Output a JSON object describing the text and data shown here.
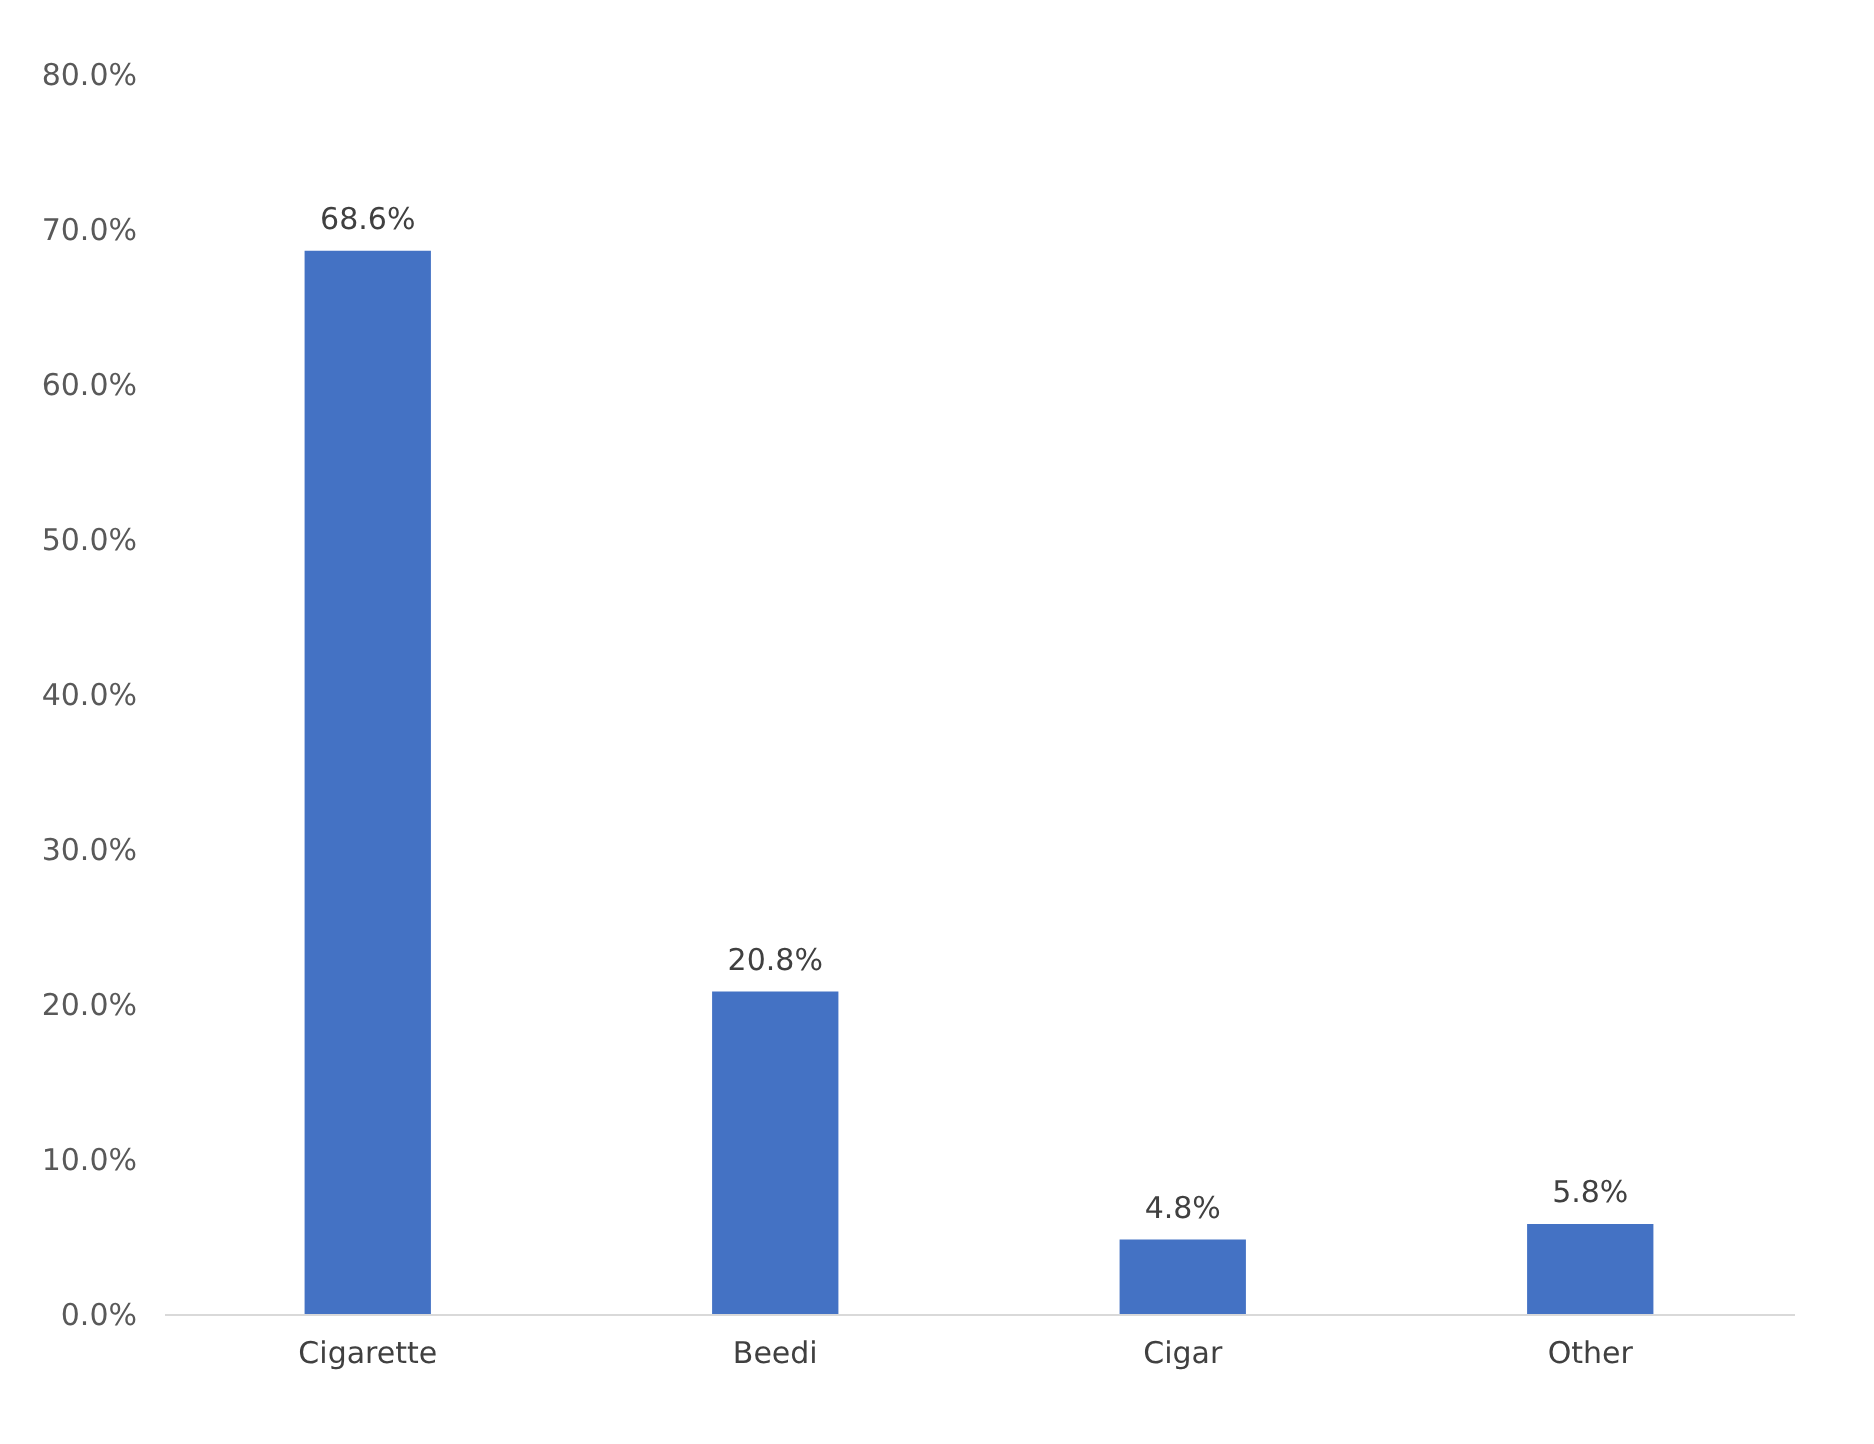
{
  "chart_data": {
    "type": "bar",
    "categories": [
      "Cigarette",
      "Beedi",
      "Cigar",
      "Other"
    ],
    "values": [
      68.6,
      20.8,
      4.8,
      5.8
    ],
    "color": "#4472c4",
    "value_labels": [
      "68.6%",
      "20.8%",
      "4.8%",
      "5.8%"
    ],
    "ylim": [
      0,
      80
    ],
    "yticks": [
      {
        "value": 0,
        "label": "0.0%"
      },
      {
        "value": 10,
        "label": "10.0%"
      },
      {
        "value": 20,
        "label": "20.0%"
      },
      {
        "value": 30,
        "label": "30.0%"
      },
      {
        "value": 40,
        "label": "40.0%"
      },
      {
        "value": 50,
        "label": "50.0%"
      },
      {
        "value": 60,
        "label": "60.0%"
      },
      {
        "value": 70,
        "label": "70.0%"
      },
      {
        "value": 80,
        "label": "80.0%"
      }
    ],
    "grid": false
  }
}
